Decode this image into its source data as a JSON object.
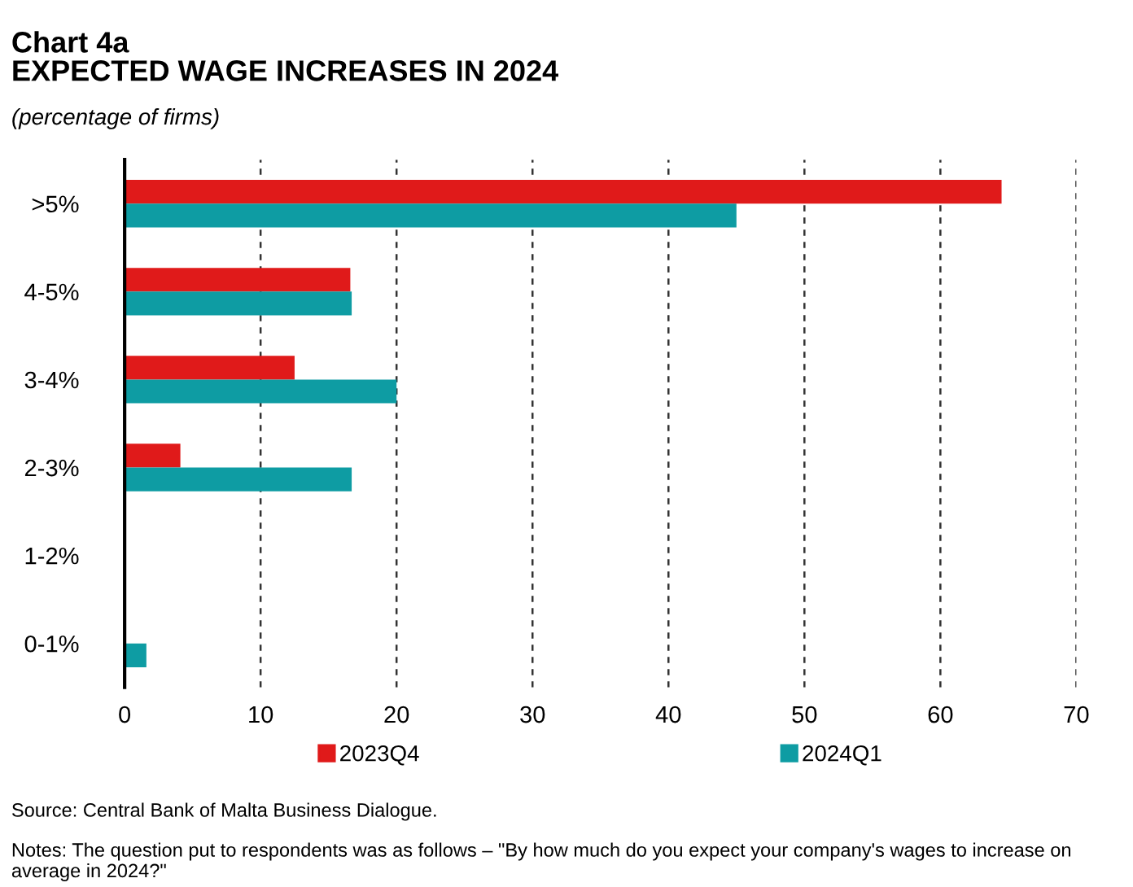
{
  "chart_data": {
    "type": "bar",
    "orientation": "horizontal",
    "title": "Chart 4a\nEXPECTED WAGE INCREASES IN 2024",
    "subtitle": "(percentage of firms)",
    "categories": [
      ">5%",
      "4-5%",
      "3-4%",
      "2-3%",
      "1-2%",
      "0-1%"
    ],
    "series": [
      {
        "name": "2023Q4",
        "color": "#e01a1a",
        "values": [
          64.5,
          16.6,
          12.5,
          4.1,
          0,
          0
        ]
      },
      {
        "name": "2024Q1",
        "color": "#0e9ca3",
        "values": [
          45.0,
          16.7,
          20.0,
          16.7,
          0,
          1.6
        ]
      }
    ],
    "xlim": [
      0,
      70
    ],
    "xticks": [
      0,
      10,
      20,
      30,
      40,
      50,
      60,
      70
    ],
    "grid": "x",
    "legend": "bottom",
    "annotations": [
      "Source: Central Bank of Malta Business Dialogue.",
      "Notes: The question put to respondents was as follows – \"By how much do you expect your company's wages to increase on average in 2024?\""
    ]
  }
}
